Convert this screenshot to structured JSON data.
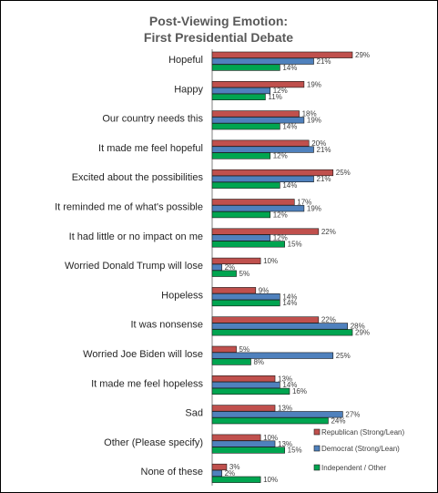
{
  "chart_data": {
    "type": "bar",
    "orientation": "horizontal",
    "title_line1": "Post-Viewing Emotion:",
    "title_line2": "First Presidential Debate",
    "categories": [
      "Hopeful",
      "Happy",
      "Our country needs this",
      "It made me feel hopeful",
      "Excited about the possibilities",
      "It reminded me of what's possible",
      "It had little or no impact on me",
      "Worried Donald Trump will lose",
      "Hopeless",
      "It was nonsense",
      "Worried Joe Biden will lose",
      "It made me feel hopeless",
      "Sad",
      "Other (Please specify)",
      "None of these"
    ],
    "series": [
      {
        "name": "Republican (Strong/Lean)",
        "color": "#c0504d",
        "values": [
          29,
          19,
          18,
          20,
          25,
          17,
          22,
          10,
          9,
          22,
          5,
          13,
          13,
          10,
          3
        ]
      },
      {
        "name": "Democrat (Strong/Lean)",
        "color": "#4f81bd",
        "values": [
          21,
          12,
          19,
          21,
          21,
          19,
          12,
          2,
          14,
          28,
          25,
          14,
          27,
          13,
          2
        ]
      },
      {
        "name": "Independent / Other",
        "color": "#00a550",
        "values": [
          14,
          11,
          14,
          12,
          14,
          12,
          15,
          5,
          14,
          29,
          8,
          16,
          24,
          15,
          10
        ]
      }
    ],
    "value_suffix": "%",
    "xlim": [
      0,
      40
    ],
    "grid": false,
    "legend_position": "bottom-right"
  }
}
